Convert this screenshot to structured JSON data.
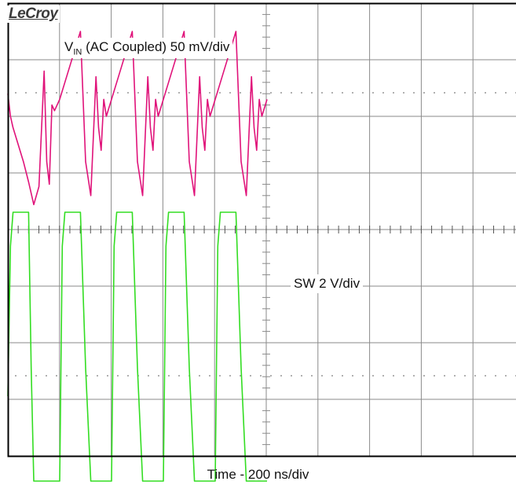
{
  "brand": "LeCroy",
  "chart_data": {
    "type": "line",
    "xlabel": "Time - 200 ns/div",
    "x_units": "ns",
    "x_per_div": 200,
    "divisions_x": 10,
    "divisions_y": 8,
    "series": [
      {
        "name": "VIN (AC Coupled) 50 mV/div",
        "label_main": "V",
        "label_sub": "IN",
        "label_rest": " (AC Coupled) 50 mV/div",
        "color": "#e0137a",
        "units": "mV",
        "per_div": 50,
        "x": [
          0,
          10,
          20,
          40,
          60,
          80,
          100,
          120,
          140,
          150,
          160,
          170,
          180,
          200,
          220,
          240,
          260,
          280,
          300,
          320,
          340,
          350,
          360,
          370,
          380,
          400,
          420,
          440,
          460,
          480,
          500,
          520,
          540,
          550,
          560,
          570,
          580,
          600,
          620,
          640,
          660,
          680,
          700,
          720,
          740,
          750,
          760,
          770,
          780,
          800,
          820,
          840,
          860,
          880,
          900,
          920,
          940,
          950,
          960,
          970,
          980,
          1000
        ],
        "y": [
          20,
          0,
          -10,
          -25,
          -40,
          -58,
          -78,
          -62,
          40,
          -40,
          -60,
          10,
          5,
          15,
          30,
          45,
          60,
          75,
          -40,
          -70,
          35,
          -10,
          -30,
          15,
          0,
          15,
          30,
          45,
          60,
          75,
          -40,
          -70,
          35,
          -10,
          -30,
          15,
          0,
          15,
          30,
          45,
          60,
          75,
          -40,
          -70,
          35,
          -10,
          -30,
          15,
          0,
          15,
          30,
          45,
          60,
          75,
          -40,
          -70,
          35,
          -10,
          -30,
          15,
          0,
          15
        ]
      },
      {
        "name": "SW 2 V/div",
        "color": "#33dd22",
        "units": "V",
        "per_div": 2,
        "x": [
          0,
          10,
          20,
          40,
          60,
          80,
          90,
          100,
          120,
          140,
          160,
          180,
          200,
          210,
          220,
          240,
          260,
          280,
          300,
          320,
          340,
          360,
          380,
          400,
          410,
          420,
          440,
          460,
          480,
          500,
          520,
          540,
          560,
          580,
          600,
          610,
          620,
          640,
          660,
          680,
          700,
          720,
          740,
          760,
          780,
          800,
          810,
          820,
          840,
          860,
          880,
          900,
          920,
          940,
          960,
          980,
          1000
        ],
        "y": [
          -1.5,
          3.8,
          5.0,
          5.0,
          5.0,
          5.0,
          -0.5,
          -4.5,
          -4.5,
          -4.5,
          -4.5,
          -4.5,
          -4.5,
          3.8,
          5.0,
          5.0,
          5.0,
          5.0,
          -0.5,
          -4.5,
          -4.5,
          -4.5,
          -4.5,
          -4.5,
          3.8,
          5.0,
          5.0,
          5.0,
          5.0,
          -0.5,
          -4.5,
          -4.5,
          -4.5,
          -4.5,
          -4.5,
          3.8,
          5.0,
          5.0,
          5.0,
          5.0,
          -0.5,
          -4.5,
          -4.5,
          -4.5,
          -4.5,
          -4.5,
          3.8,
          5.0,
          5.0,
          5.0,
          5.0,
          -0.5,
          -4.5,
          -4.5,
          -4.5,
          -4.5,
          -4.5
        ]
      }
    ]
  }
}
